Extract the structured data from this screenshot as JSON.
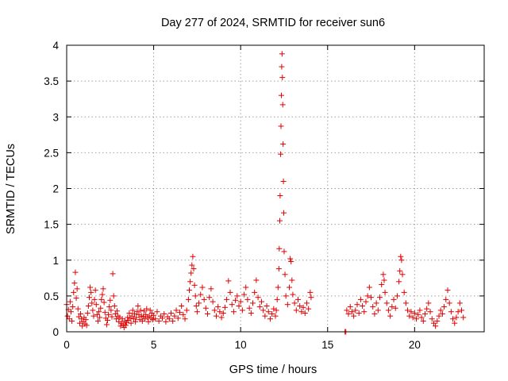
{
  "chart_data": {
    "type": "scatter",
    "title": "Day 277 of 2024, SRMTID for receiver sun6",
    "xlabel": "GPS time / hours",
    "ylabel": "SRMTID / TECUs",
    "xlim": [
      0,
      24
    ],
    "ylim": [
      0,
      4
    ],
    "x_ticks": [
      {
        "value": 0,
        "label": "0"
      },
      {
        "value": 5,
        "label": "5"
      },
      {
        "value": 10,
        "label": "10"
      },
      {
        "value": 15,
        "label": "15"
      },
      {
        "value": 20,
        "label": "20"
      }
    ],
    "y_ticks": [
      {
        "value": 0,
        "label": "0"
      },
      {
        "value": 0.5,
        "label": "0.5"
      },
      {
        "value": 1,
        "label": "1"
      },
      {
        "value": 1.5,
        "label": "1.5"
      },
      {
        "value": 2,
        "label": "2"
      },
      {
        "value": 2.5,
        "label": "2.5"
      },
      {
        "value": 3,
        "label": "3"
      },
      {
        "value": 3.5,
        "label": "3.5"
      },
      {
        "value": 4,
        "label": "4"
      }
    ],
    "grid": true,
    "marker": "+",
    "color": "#e00000",
    "series": [
      {
        "name": "SRMTID",
        "points": [
          [
            0.0,
            0.38
          ],
          [
            0.05,
            0.22
          ],
          [
            0.1,
            0.31
          ],
          [
            0.15,
            0.18
          ],
          [
            0.2,
            0.42
          ],
          [
            0.25,
            0.28
          ],
          [
            0.3,
            0.15
          ],
          [
            0.35,
            0.35
          ],
          [
            0.4,
            0.55
          ],
          [
            0.45,
            0.68
          ],
          [
            0.5,
            0.83
          ],
          [
            0.55,
            0.47
          ],
          [
            0.6,
            0.6
          ],
          [
            0.65,
            0.32
          ],
          [
            0.7,
            0.21
          ],
          [
            0.75,
            0.12
          ],
          [
            0.8,
            0.25
          ],
          [
            0.85,
            0.18
          ],
          [
            0.9,
            0.08
          ],
          [
            0.95,
            0.14
          ],
          [
            1.0,
            0.2
          ],
          [
            1.05,
            0.11
          ],
          [
            1.1,
            0.17
          ],
          [
            1.15,
            0.09
          ],
          [
            1.2,
            0.26
          ],
          [
            1.25,
            0.36
          ],
          [
            1.3,
            0.48
          ],
          [
            1.35,
            0.62
          ],
          [
            1.4,
            0.55
          ],
          [
            1.45,
            0.4
          ],
          [
            1.5,
            0.3
          ],
          [
            1.55,
            0.22
          ],
          [
            1.6,
            0.45
          ],
          [
            1.65,
            0.58
          ],
          [
            1.7,
            0.38
          ],
          [
            1.75,
            0.24
          ],
          [
            1.8,
            0.15
          ],
          [
            1.85,
            0.28
          ],
          [
            1.9,
            0.2
          ],
          [
            1.95,
            0.33
          ],
          [
            2.0,
            0.45
          ],
          [
            2.05,
            0.52
          ],
          [
            2.1,
            0.6
          ],
          [
            2.15,
            0.41
          ],
          [
            2.2,
            0.27
          ],
          [
            2.25,
            0.19
          ],
          [
            2.3,
            0.1
          ],
          [
            2.35,
            0.16
          ],
          [
            2.4,
            0.24
          ],
          [
            2.45,
            0.35
          ],
          [
            2.5,
            0.44
          ],
          [
            2.55,
            0.3
          ],
          [
            2.6,
            0.21
          ],
          [
            2.65,
            0.81
          ],
          [
            2.7,
            0.5
          ],
          [
            2.75,
            0.36
          ],
          [
            2.8,
            0.25
          ],
          [
            2.85,
            0.18
          ],
          [
            2.9,
            0.29
          ],
          [
            2.95,
            0.22
          ],
          [
            3.0,
            0.14
          ],
          [
            3.05,
            0.2
          ],
          [
            3.1,
            0.08
          ],
          [
            3.15,
            0.12
          ],
          [
            3.2,
            0.18
          ],
          [
            3.25,
            0.1
          ],
          [
            3.3,
            0.06
          ],
          [
            3.35,
            0.15
          ],
          [
            3.4,
            0.09
          ],
          [
            3.45,
            0.13
          ],
          [
            3.5,
            0.2
          ],
          [
            3.55,
            0.16
          ],
          [
            3.6,
            0.26
          ],
          [
            3.65,
            0.19
          ],
          [
            3.7,
            0.12
          ],
          [
            3.75,
            0.22
          ],
          [
            3.8,
            0.3
          ],
          [
            3.85,
            0.18
          ],
          [
            3.9,
            0.25
          ],
          [
            3.95,
            0.14
          ],
          [
            4.0,
            0.2
          ],
          [
            4.05,
            0.28
          ],
          [
            4.1,
            0.36
          ],
          [
            4.15,
            0.24
          ],
          [
            4.2,
            0.17
          ],
          [
            4.25,
            0.3
          ],
          [
            4.3,
            0.22
          ],
          [
            4.35,
            0.15
          ],
          [
            4.4,
            0.21
          ],
          [
            4.45,
            0.29
          ],
          [
            4.5,
            0.18
          ],
          [
            4.55,
            0.24
          ],
          [
            4.6,
            0.32
          ],
          [
            4.65,
            0.2
          ],
          [
            4.7,
            0.14
          ],
          [
            4.75,
            0.22
          ],
          [
            4.8,
            0.3
          ],
          [
            4.85,
            0.19
          ],
          [
            4.9,
            0.26
          ],
          [
            4.95,
            0.17
          ],
          [
            5.0,
            0.23
          ],
          [
            5.1,
            0.18
          ],
          [
            5.2,
            0.28
          ],
          [
            5.3,
            0.15
          ],
          [
            5.4,
            0.22
          ],
          [
            5.5,
            0.19
          ],
          [
            5.6,
            0.25
          ],
          [
            5.7,
            0.14
          ],
          [
            5.8,
            0.21
          ],
          [
            5.9,
            0.18
          ],
          [
            6.0,
            0.26
          ],
          [
            6.1,
            0.15
          ],
          [
            6.2,
            0.22
          ],
          [
            6.3,
            0.3
          ],
          [
            6.4,
            0.19
          ],
          [
            6.5,
            0.27
          ],
          [
            6.6,
            0.36
          ],
          [
            6.7,
            0.24
          ],
          [
            6.8,
            0.18
          ],
          [
            6.9,
            0.3
          ],
          [
            7.0,
            0.45
          ],
          [
            7.05,
            0.58
          ],
          [
            7.1,
            0.7
          ],
          [
            7.15,
            0.82
          ],
          [
            7.2,
            0.93
          ],
          [
            7.25,
            1.05
          ],
          [
            7.3,
            0.88
          ],
          [
            7.35,
            0.65
          ],
          [
            7.4,
            0.5
          ],
          [
            7.45,
            0.36
          ],
          [
            7.5,
            0.28
          ],
          [
            7.6,
            0.4
          ],
          [
            7.7,
            0.52
          ],
          [
            7.8,
            0.62
          ],
          [
            7.9,
            0.45
          ],
          [
            8.0,
            0.33
          ],
          [
            8.1,
            0.25
          ],
          [
            8.2,
            0.48
          ],
          [
            8.3,
            0.6
          ],
          [
            8.4,
            0.42
          ],
          [
            8.5,
            0.3
          ],
          [
            8.6,
            0.22
          ],
          [
            8.7,
            0.35
          ],
          [
            8.8,
            0.28
          ],
          [
            8.9,
            0.2
          ],
          [
            9.0,
            0.26
          ],
          [
            9.1,
            0.34
          ],
          [
            9.2,
            0.45
          ],
          [
            9.3,
            0.71
          ],
          [
            9.4,
            0.55
          ],
          [
            9.5,
            0.38
          ],
          [
            9.6,
            0.28
          ],
          [
            9.7,
            0.44
          ],
          [
            9.8,
            0.5
          ],
          [
            9.9,
            0.36
          ],
          [
            10.0,
            0.42
          ],
          [
            10.1,
            0.3
          ],
          [
            10.2,
            0.52
          ],
          [
            10.3,
            0.62
          ],
          [
            10.4,
            0.45
          ],
          [
            10.5,
            0.33
          ],
          [
            10.6,
            0.26
          ],
          [
            10.7,
            0.4
          ],
          [
            10.8,
            0.55
          ],
          [
            10.9,
            0.72
          ],
          [
            11.0,
            0.48
          ],
          [
            11.1,
            0.35
          ],
          [
            11.2,
            0.42
          ],
          [
            11.3,
            0.3
          ],
          [
            11.4,
            0.22
          ],
          [
            11.5,
            0.36
          ],
          [
            11.6,
            0.28
          ],
          [
            11.7,
            0.18
          ],
          [
            11.8,
            0.25
          ],
          [
            11.9,
            0.32
          ],
          [
            12.0,
            0.22
          ],
          [
            12.05,
            0.3
          ],
          [
            12.1,
            0.45
          ],
          [
            12.15,
            0.62
          ],
          [
            12.2,
            0.88
          ],
          [
            12.22,
            1.16
          ],
          [
            12.25,
            1.55
          ],
          [
            12.27,
            1.9
          ],
          [
            12.3,
            2.48
          ],
          [
            12.32,
            2.87
          ],
          [
            12.34,
            3.3
          ],
          [
            12.36,
            3.7
          ],
          [
            12.38,
            3.88
          ],
          [
            12.4,
            3.55
          ],
          [
            12.42,
            3.17
          ],
          [
            12.44,
            2.62
          ],
          [
            12.46,
            2.1
          ],
          [
            12.48,
            1.66
          ],
          [
            12.5,
            1.12
          ],
          [
            12.55,
            0.8
          ],
          [
            12.6,
            0.5
          ],
          [
            12.7,
            0.38
          ],
          [
            12.8,
            0.62
          ],
          [
            12.85,
            1.02
          ],
          [
            12.9,
            0.98
          ],
          [
            12.95,
            0.72
          ],
          [
            13.0,
            0.52
          ],
          [
            13.1,
            0.4
          ],
          [
            13.2,
            0.3
          ],
          [
            13.3,
            0.45
          ],
          [
            13.4,
            0.36
          ],
          [
            13.5,
            0.28
          ],
          [
            13.6,
            0.34
          ],
          [
            13.7,
            0.26
          ],
          [
            13.8,
            0.4
          ],
          [
            13.9,
            0.32
          ],
          [
            14.0,
            0.55
          ],
          [
            14.05,
            0.48
          ],
          [
            16.0,
            0.0
          ],
          [
            16.05,
            0.0
          ],
          [
            16.1,
            0.3
          ],
          [
            16.2,
            0.25
          ],
          [
            16.3,
            0.35
          ],
          [
            16.4,
            0.28
          ],
          [
            16.5,
            0.22
          ],
          [
            16.6,
            0.3
          ],
          [
            16.7,
            0.38
          ],
          [
            16.8,
            0.26
          ],
          [
            16.9,
            0.45
          ],
          [
            17.0,
            0.36
          ],
          [
            17.1,
            0.28
          ],
          [
            17.2,
            0.42
          ],
          [
            17.3,
            0.5
          ],
          [
            17.4,
            0.62
          ],
          [
            17.5,
            0.48
          ],
          [
            17.6,
            0.35
          ],
          [
            17.7,
            0.25
          ],
          [
            17.8,
            0.4
          ],
          [
            17.9,
            0.3
          ],
          [
            18.0,
            0.48
          ],
          [
            18.1,
            0.66
          ],
          [
            18.2,
            0.8
          ],
          [
            18.25,
            0.72
          ],
          [
            18.3,
            0.55
          ],
          [
            18.4,
            0.4
          ],
          [
            18.5,
            0.3
          ],
          [
            18.6,
            0.22
          ],
          [
            18.7,
            0.35
          ],
          [
            18.8,
            0.45
          ],
          [
            18.9,
            0.33
          ],
          [
            19.0,
            0.5
          ],
          [
            19.1,
            0.7
          ],
          [
            19.15,
            0.85
          ],
          [
            19.2,
            1.05
          ],
          [
            19.25,
            1.0
          ],
          [
            19.3,
            0.8
          ],
          [
            19.4,
            0.55
          ],
          [
            19.5,
            0.4
          ],
          [
            19.6,
            0.3
          ],
          [
            19.7,
            0.22
          ],
          [
            19.8,
            0.28
          ],
          [
            19.9,
            0.2
          ],
          [
            20.0,
            0.26
          ],
          [
            20.1,
            0.18
          ],
          [
            20.2,
            0.24
          ],
          [
            20.3,
            0.3
          ],
          [
            20.4,
            0.2
          ],
          [
            20.5,
            0.15
          ],
          [
            20.6,
            0.25
          ],
          [
            20.7,
            0.32
          ],
          [
            20.8,
            0.4
          ],
          [
            20.9,
            0.28
          ],
          [
            21.0,
            0.18
          ],
          [
            21.1,
            0.12
          ],
          [
            21.2,
            0.08
          ],
          [
            21.3,
            0.15
          ],
          [
            21.4,
            0.22
          ],
          [
            21.5,
            0.3
          ],
          [
            21.6,
            0.25
          ],
          [
            21.7,
            0.35
          ],
          [
            21.8,
            0.45
          ],
          [
            21.9,
            0.58
          ],
          [
            22.0,
            0.4
          ],
          [
            22.1,
            0.28
          ],
          [
            22.2,
            0.18
          ],
          [
            22.3,
            0.12
          ],
          [
            22.4,
            0.2
          ],
          [
            22.5,
            0.28
          ],
          [
            22.6,
            0.4
          ],
          [
            22.7,
            0.3
          ],
          [
            22.8,
            0.2
          ]
        ]
      }
    ]
  }
}
